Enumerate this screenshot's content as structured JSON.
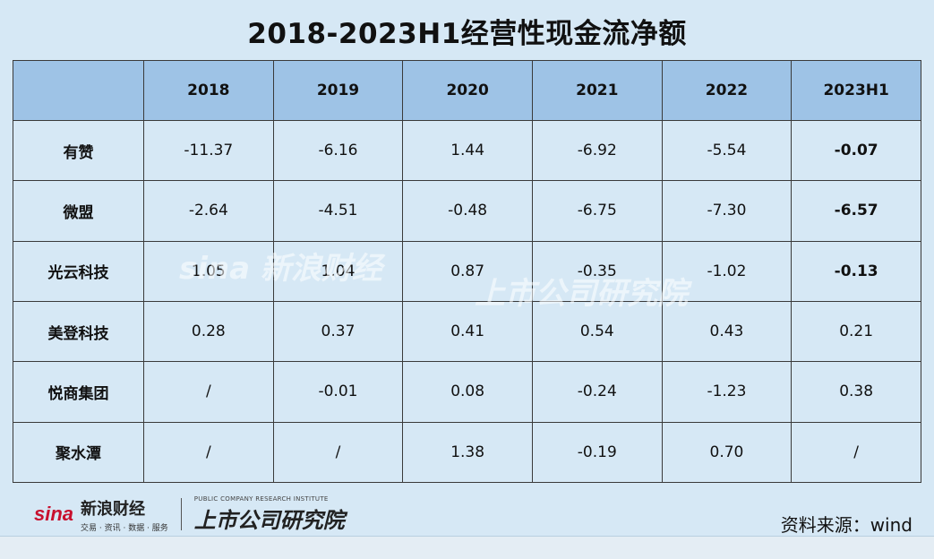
{
  "title": "2018-2023H1经营性现金流净额",
  "table": {
    "columns": [
      "",
      "2018",
      "2019",
      "2020",
      "2021",
      "2022",
      "2023H1"
    ],
    "rows": [
      {
        "name": "有赞",
        "values": [
          "-11.37",
          "-6.16",
          "1.44",
          "-6.92",
          "-5.54",
          "-0.07"
        ],
        "highlight_last": true
      },
      {
        "name": "微盟",
        "values": [
          "-2.64",
          "-4.51",
          "-0.48",
          "-6.75",
          "-7.30",
          "-6.57"
        ],
        "highlight_last": true
      },
      {
        "name": "光云科技",
        "values": [
          "1.05",
          "1.04",
          "0.87",
          "-0.35",
          "-1.02",
          "-0.13"
        ],
        "highlight_last": true
      },
      {
        "name": "美登科技",
        "values": [
          "0.28",
          "0.37",
          "0.41",
          "0.54",
          "0.43",
          "0.21"
        ],
        "highlight_last": false
      },
      {
        "name": "悦商集团",
        "values": [
          "/",
          "-0.01",
          "0.08",
          "-0.24",
          "-1.23",
          "0.38"
        ],
        "highlight_last": false
      },
      {
        "name": "聚水潭",
        "values": [
          "/",
          "/",
          "1.38",
          "-0.19",
          "0.70",
          "/"
        ],
        "highlight_last": false
      }
    ]
  },
  "colors": {
    "highlight": "#e51c1c",
    "header_bg": "#9ec3e6",
    "body_bg": "#d6e8f5"
  },
  "watermark": {
    "sina": "sina 新浪财经",
    "institute": "上市公司研究院"
  },
  "footer": {
    "sina_logo": "sina",
    "sina_cn": "新浪财经",
    "sina_sub": "交易 · 资讯 · 数据 · 服务",
    "institute_en": "PUBLIC COMPANY RESEARCH INSTITUTE",
    "institute_cn": "上市公司研究院",
    "source": "资料来源：wind"
  }
}
